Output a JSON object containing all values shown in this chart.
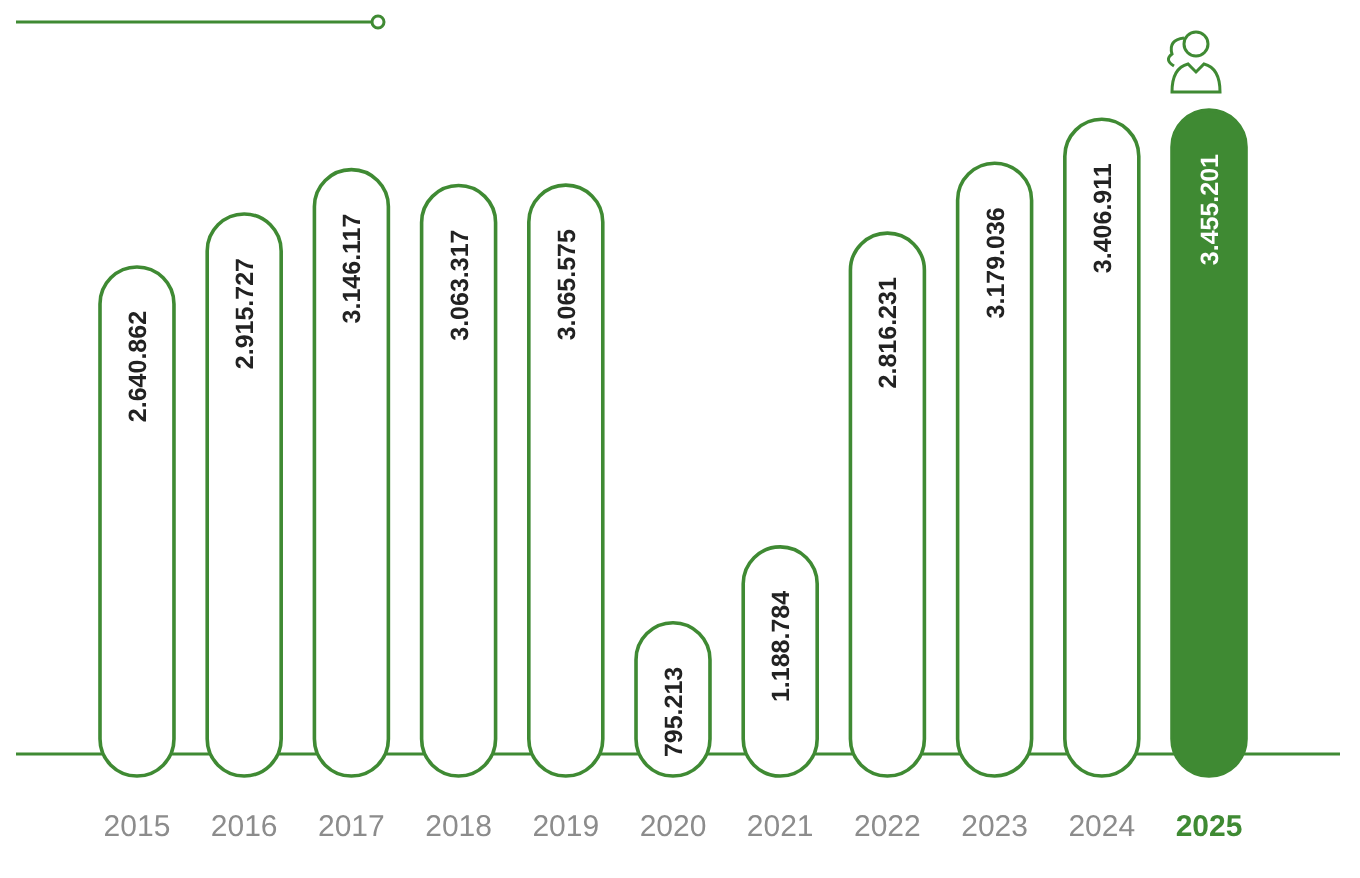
{
  "chart_data": {
    "type": "bar",
    "categories": [
      "2015",
      "2016",
      "2017",
      "2018",
      "2019",
      "2020",
      "2021",
      "2022",
      "2023",
      "2024",
      "2025"
    ],
    "values": [
      2640862,
      2915727,
      3146117,
      3063317,
      3065575,
      795213,
      1188784,
      2816231,
      3179036,
      3406911,
      3455201
    ],
    "value_labels": [
      "2.640.862",
      "2.915.727",
      "3.146.117",
      "3.063.317",
      "3.065.575",
      "795.213",
      "1.188.784",
      "2.816.231",
      "3.179.036",
      "3.406.911",
      "3.455.201"
    ],
    "colors": [
      "#ffffff",
      "#ffffff",
      "#ffffff",
      "#ffffff",
      "#ffffff",
      "#ffffff",
      "#ffffff",
      "#ffffff",
      "#ffffff",
      "#ffffff",
      "#3f8a33"
    ]
  }
}
